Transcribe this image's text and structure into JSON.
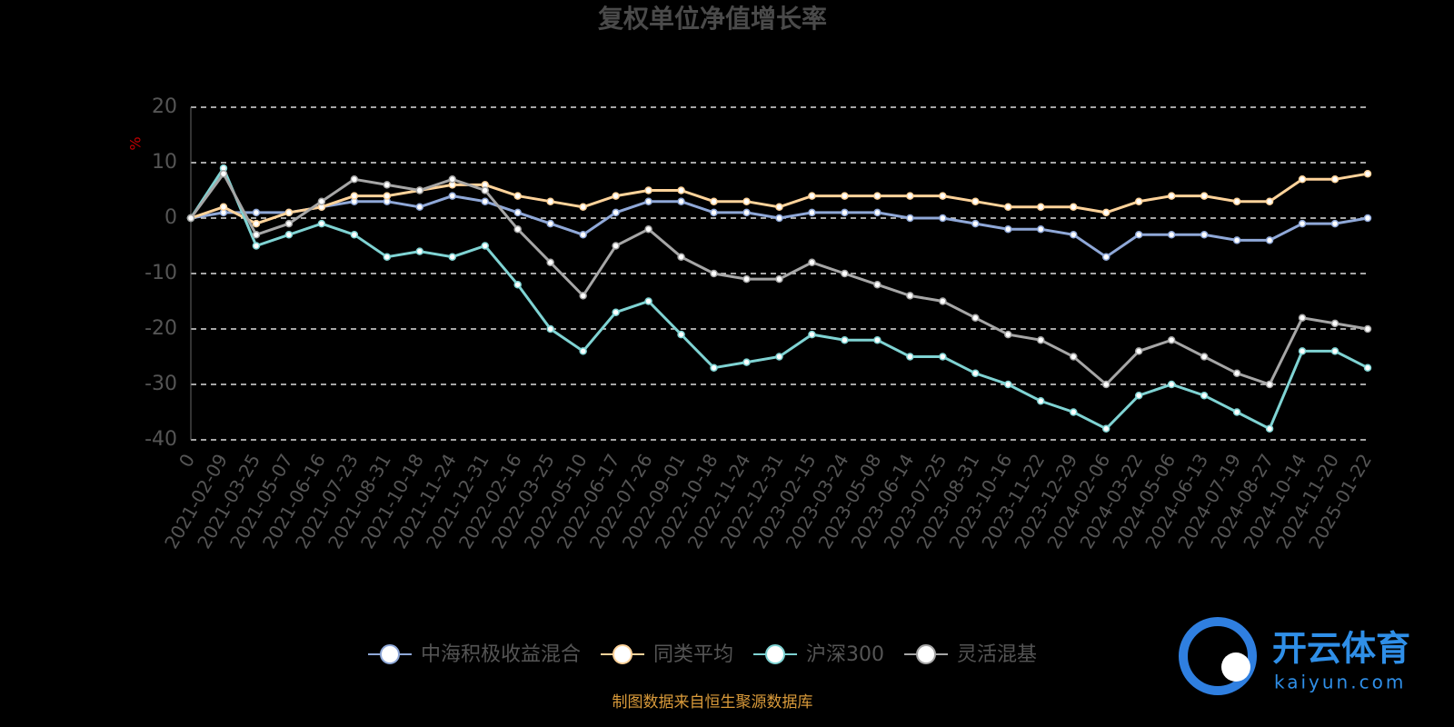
{
  "chart_data": {
    "type": "line",
    "title": "复权单位净值增长率",
    "y_label": "%",
    "source": "制图数据来自恒生聚源数据库",
    "watermark": {
      "brand": "开云体育",
      "site": "kaiyun.com"
    },
    "categories": [
      "0",
      "2021-02-09",
      "2021-03-25",
      "2021-05-07",
      "2021-06-16",
      "2021-07-23",
      "2021-08-31",
      "2021-10-18",
      "2021-11-24",
      "2021-12-31",
      "2022-02-16",
      "2022-03-25",
      "2022-05-10",
      "2022-06-17",
      "2022-07-26",
      "2022-09-01",
      "2022-10-18",
      "2022-11-24",
      "2022-12-31",
      "2023-02-15",
      "2023-03-24",
      "2023-05-08",
      "2023-06-14",
      "2023-07-25",
      "2023-08-31",
      "2023-10-16",
      "2023-11-22",
      "2023-12-29",
      "2024-02-06",
      "2024-03-22",
      "2024-05-06",
      "2024-06-13",
      "2024-07-19",
      "2024-08-27",
      "2024-10-14",
      "2024-11-20",
      "2025-01-22"
    ],
    "series": [
      {
        "name": "中海积极收益混合",
        "color": "#8fa8d8",
        "values": [
          0,
          1,
          1,
          1,
          2,
          3,
          3,
          2,
          4,
          3,
          1,
          -1,
          -3,
          1,
          3,
          3,
          1,
          1,
          0,
          1,
          1,
          1,
          0,
          0,
          -1,
          -2,
          -2,
          -3,
          -7,
          -3,
          -3,
          -3,
          -4,
          -4,
          -1,
          -1,
          0
        ]
      },
      {
        "name": "同类平均",
        "color": "#ffd39a",
        "values": [
          0,
          2,
          -1,
          1,
          2,
          4,
          4,
          5,
          6,
          6,
          4,
          3,
          2,
          4,
          5,
          5,
          3,
          3,
          2,
          4,
          4,
          4,
          4,
          4,
          3,
          2,
          2,
          2,
          1,
          3,
          4,
          4,
          3,
          3,
          7,
          7,
          8
        ]
      },
      {
        "name": "沪深300",
        "color": "#7fd3d3",
        "values": [
          0,
          9,
          -5,
          -3,
          -1,
          -3,
          -7,
          -6,
          -7,
          -5,
          -12,
          -20,
          -24,
          -17,
          -15,
          -21,
          -27,
          -26,
          -25,
          -21,
          -22,
          -22,
          -25,
          -25,
          -28,
          -30,
          -33,
          -35,
          -38,
          -32,
          -30,
          -32,
          -35,
          -38,
          -24,
          -24,
          -27
        ]
      },
      {
        "name": "灵活混基",
        "color": "#a6a6a6",
        "values": [
          0,
          8,
          -3,
          -1,
          3,
          7,
          6,
          5,
          7,
          5,
          -2,
          -8,
          -14,
          -5,
          -2,
          -7,
          -10,
          -11,
          -11,
          -8,
          -10,
          -12,
          -14,
          -15,
          -18,
          -21,
          -22,
          -25,
          -30,
          -24,
          -22,
          -25,
          -28,
          -30,
          -18,
          -19,
          -20
        ]
      }
    ],
    "ylim": [
      -40,
      20
    ],
    "yticks": [
      -40,
      -30,
      -20,
      -10,
      0,
      10,
      20
    ],
    "grid": true
  }
}
